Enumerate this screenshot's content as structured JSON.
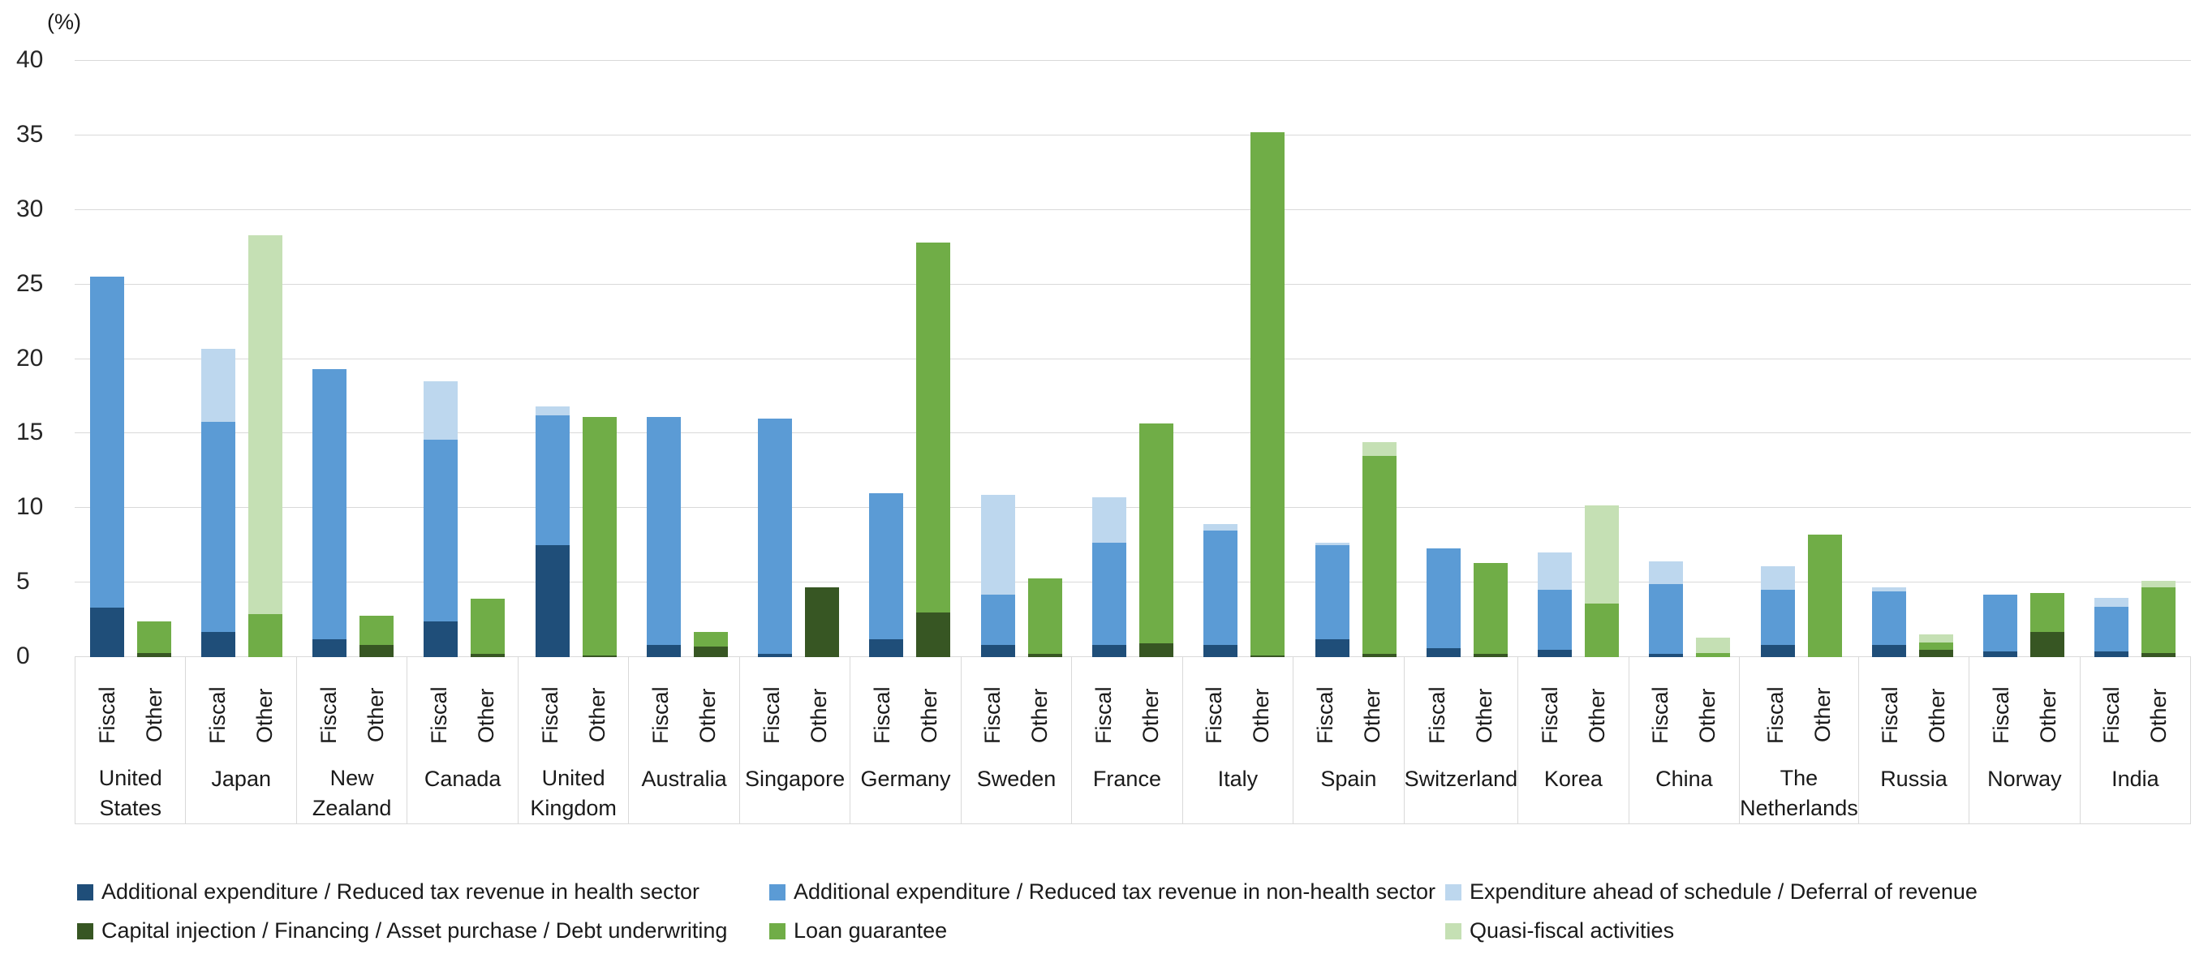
{
  "unit_label": "(%)",
  "colors": {
    "health": "#1f4e79",
    "non_health": "#5b9bd5",
    "ahead": "#bdd7ee",
    "capital": "#375623",
    "loan": "#70ad47",
    "quasi": "#c5e0b4",
    "gridline": "#d9d9d9",
    "text": "#1a1a1a"
  },
  "legend": [
    {
      "key": "health",
      "label": "Additional expenditure / Reduced tax revenue in health sector"
    },
    {
      "key": "non_health",
      "label": "Additional expenditure / Reduced tax revenue in non-health sector"
    },
    {
      "key": "ahead",
      "label": "Expenditure ahead of schedule / Deferral of revenue"
    },
    {
      "key": "capital",
      "label": "Capital injection / Financing / Asset purchase / Debt underwriting"
    },
    {
      "key": "loan",
      "label": "Loan guarantee"
    },
    {
      "key": "quasi",
      "label": "Quasi-fiscal activities"
    }
  ],
  "bar_labels": {
    "fiscal": "Fiscal",
    "other": "Other"
  },
  "chart_data": {
    "type": "bar",
    "stacked": true,
    "grid": true,
    "legend_position": "bottom",
    "ylabel": "(%)",
    "ylim": [
      0,
      40
    ],
    "yticks": [
      0,
      5,
      10,
      15,
      20,
      25,
      30,
      35,
      40
    ],
    "fiscal_stack_order": [
      "health",
      "non_health",
      "ahead"
    ],
    "other_stack_order": [
      "capital",
      "loan",
      "quasi"
    ],
    "countries": [
      {
        "name": "United States",
        "name_lines": [
          "United",
          "States"
        ],
        "fiscal": {
          "health": 3.3,
          "non_health": 22.2,
          "ahead": 0
        },
        "other": {
          "capital": 0.3,
          "loan": 2.1,
          "quasi": 0
        }
      },
      {
        "name": "Japan",
        "name_lines": [
          "Japan"
        ],
        "fiscal": {
          "health": 1.7,
          "non_health": 14.1,
          "ahead": 4.9
        },
        "other": {
          "capital": 0,
          "loan": 2.9,
          "quasi": 25.4
        }
      },
      {
        "name": "New Zealand",
        "name_lines": [
          "New",
          "Zealand"
        ],
        "fiscal": {
          "health": 1.2,
          "non_health": 18.1,
          "ahead": 0
        },
        "other": {
          "capital": 0.8,
          "loan": 2.0,
          "quasi": 0
        }
      },
      {
        "name": "Canada",
        "name_lines": [
          "Canada"
        ],
        "fiscal": {
          "health": 2.4,
          "non_health": 12.2,
          "ahead": 3.9
        },
        "other": {
          "capital": 0.2,
          "loan": 3.7,
          "quasi": 0
        }
      },
      {
        "name": "United Kingdom",
        "name_lines": [
          "United",
          "Kingdom"
        ],
        "fiscal": {
          "health": 7.5,
          "non_health": 8.7,
          "ahead": 0.6
        },
        "other": {
          "capital": 0.1,
          "loan": 16.0,
          "quasi": 0
        }
      },
      {
        "name": "Australia",
        "name_lines": [
          "Australia"
        ],
        "fiscal": {
          "health": 0.8,
          "non_health": 15.3,
          "ahead": 0
        },
        "other": {
          "capital": 0.7,
          "loan": 1.0,
          "quasi": 0
        }
      },
      {
        "name": "Singapore",
        "name_lines": [
          "Singapore"
        ],
        "fiscal": {
          "health": 0.2,
          "non_health": 15.8,
          "ahead": 0
        },
        "other": {
          "capital": 4.7,
          "loan": 0,
          "quasi": 0
        }
      },
      {
        "name": "Germany",
        "name_lines": [
          "Germany"
        ],
        "fiscal": {
          "health": 1.2,
          "non_health": 9.8,
          "ahead": 0
        },
        "other": {
          "capital": 3.0,
          "loan": 24.8,
          "quasi": 0
        }
      },
      {
        "name": "Sweden",
        "name_lines": [
          "Sweden"
        ],
        "fiscal": {
          "health": 0.8,
          "non_health": 3.4,
          "ahead": 6.7
        },
        "other": {
          "capital": 0.2,
          "loan": 5.1,
          "quasi": 0
        }
      },
      {
        "name": "France",
        "name_lines": [
          "France"
        ],
        "fiscal": {
          "health": 0.8,
          "non_health": 6.9,
          "ahead": 3.0
        },
        "other": {
          "capital": 0.9,
          "loan": 14.8,
          "quasi": 0
        }
      },
      {
        "name": "Italy",
        "name_lines": [
          "Italy"
        ],
        "fiscal": {
          "health": 0.8,
          "non_health": 7.7,
          "ahead": 0.4
        },
        "other": {
          "capital": 0.1,
          "loan": 35.1,
          "quasi": 0
        }
      },
      {
        "name": "Spain",
        "name_lines": [
          "Spain"
        ],
        "fiscal": {
          "health": 1.2,
          "non_health": 6.3,
          "ahead": 0.2
        },
        "other": {
          "capital": 0.2,
          "loan": 13.3,
          "quasi": 0.9
        }
      },
      {
        "name": "Switzerland",
        "name_lines": [
          "Switzerland"
        ],
        "fiscal": {
          "health": 0.6,
          "non_health": 6.7,
          "ahead": 0
        },
        "other": {
          "capital": 0.2,
          "loan": 6.1,
          "quasi": 0
        }
      },
      {
        "name": "Korea",
        "name_lines": [
          "Korea"
        ],
        "fiscal": {
          "health": 0.5,
          "non_health": 4.0,
          "ahead": 2.5
        },
        "other": {
          "capital": 0,
          "loan": 3.6,
          "quasi": 6.6
        }
      },
      {
        "name": "China",
        "name_lines": [
          "China"
        ],
        "fiscal": {
          "health": 0.2,
          "non_health": 4.7,
          "ahead": 1.5
        },
        "other": {
          "capital": 0,
          "loan": 0.3,
          "quasi": 1.0
        }
      },
      {
        "name": "The Netherlands",
        "name_lines": [
          "The",
          "Netherlands"
        ],
        "fiscal": {
          "health": 0.8,
          "non_health": 3.7,
          "ahead": 1.6
        },
        "other": {
          "capital": 0,
          "loan": 8.2,
          "quasi": 0
        }
      },
      {
        "name": "Russia",
        "name_lines": [
          "Russia"
        ],
        "fiscal": {
          "health": 0.8,
          "non_health": 3.6,
          "ahead": 0.3
        },
        "other": {
          "capital": 0.5,
          "loan": 0.5,
          "quasi": 0.5
        }
      },
      {
        "name": "Norway",
        "name_lines": [
          "Norway"
        ],
        "fiscal": {
          "health": 0.4,
          "non_health": 3.8,
          "ahead": 0
        },
        "other": {
          "capital": 1.7,
          "loan": 2.6,
          "quasi": 0
        }
      },
      {
        "name": "India",
        "name_lines": [
          "India"
        ],
        "fiscal": {
          "health": 0.4,
          "non_health": 3.0,
          "ahead": 0.6
        },
        "other": {
          "capital": 0.3,
          "loan": 4.4,
          "quasi": 0.4
        }
      }
    ]
  }
}
